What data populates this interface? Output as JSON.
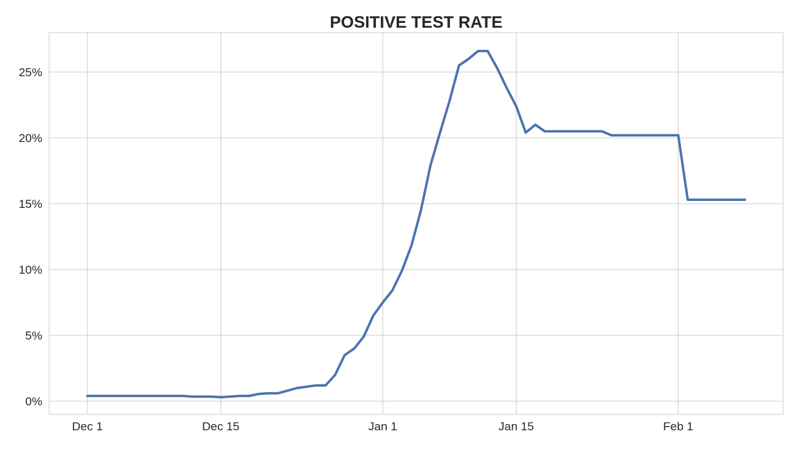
{
  "chart_data": {
    "type": "line",
    "title": "POSITIVE TEST RATE",
    "xlabel": "",
    "ylabel": "",
    "x_start": "2021-12-01",
    "xlim": [
      "2021-11-27",
      "2022-02-12"
    ],
    "ylim": [
      -1.0,
      28.0
    ],
    "grid": true,
    "legend": "none",
    "x_ticks": [
      {
        "date": "2021-12-01",
        "label": "Dec 1"
      },
      {
        "date": "2021-12-15",
        "label": "Dec 15"
      },
      {
        "date": "2022-01-01",
        "label": "Jan 1"
      },
      {
        "date": "2022-01-15",
        "label": "Jan 15"
      },
      {
        "date": "2022-02-01",
        "label": "Feb 1"
      }
    ],
    "y_ticks": [
      {
        "value": 0,
        "label": "0%"
      },
      {
        "value": 5,
        "label": "5%"
      },
      {
        "value": 10,
        "label": "10%"
      },
      {
        "value": 15,
        "label": "15%"
      },
      {
        "value": 20,
        "label": "20%"
      },
      {
        "value": 25,
        "label": "25%"
      }
    ],
    "series": [
      {
        "color": "#4c72b0",
        "values": [
          0.4,
          0.4,
          0.4,
          0.4,
          0.4,
          0.4,
          0.4,
          0.4,
          0.4,
          0.4,
          0.4,
          0.35,
          0.35,
          0.35,
          0.3,
          0.35,
          0.4,
          0.4,
          0.55,
          0.6,
          0.6,
          0.8,
          1.0,
          1.1,
          1.2,
          1.2,
          2.0,
          3.5,
          4.0,
          4.9,
          6.5,
          7.5,
          8.4,
          9.9,
          11.8,
          14.5,
          17.9,
          20.4,
          22.8,
          25.5,
          26.0,
          26.6,
          26.6,
          25.3,
          23.8,
          22.4,
          20.4,
          21.0,
          20.5,
          20.5,
          20.5,
          20.5,
          20.5,
          20.5,
          20.5,
          20.2,
          20.2,
          20.2,
          20.2,
          20.2,
          20.2,
          20.2,
          20.2,
          15.3,
          15.3,
          15.3,
          15.3,
          15.3,
          15.3,
          15.3
        ]
      }
    ]
  }
}
